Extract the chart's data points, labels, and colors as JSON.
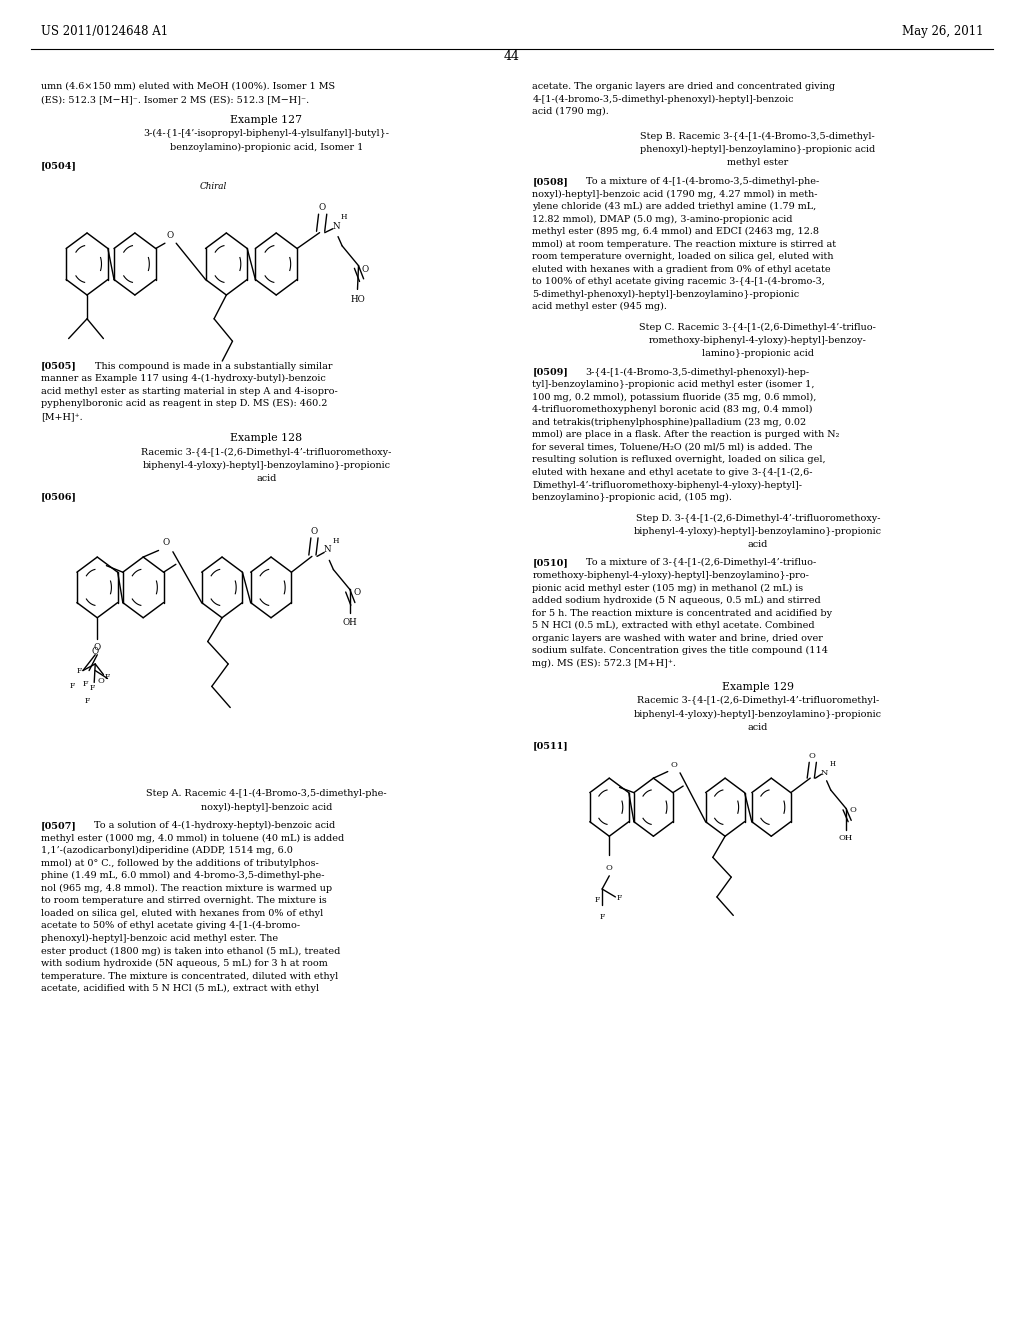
{
  "background": "#ffffff",
  "header_left": "US 2011/0124648 A1",
  "header_right": "May 26, 2011",
  "page_number": "44",
  "left_top_lines": [
    "umn (4.6×150 mm) eluted with MeOH (100%). Isomer 1 MS",
    "(ES): 512.3 [M−H]⁻. Isomer 2 MS (ES): 512.3 [M−H]⁻."
  ],
  "ex127_title": "Example 127",
  "ex127_sub1": "3-(4-{1-[4’-isopropyl-biphenyl-4-ylsulfanyl]-butyl}-",
  "ex127_sub2": "benzoylamino)-propionic acid, Isomer 1",
  "tag504": "[0504]",
  "chiral_label": "Chiral",
  "tag505": "[0505]",
  "p505": "This compound is made in a substantially similar manner as Example 117 using 4-(1-hydroxy-butyl)-benzoic acid methyl ester as starting material in step A and 4-isopropyphenylboronic acid as reagent in step D. MS (ES): 460.2 [M+H]⁺.",
  "ex128_title": "Example 128",
  "ex128_sub1": "Racemic 3-{4-[1-(2,6-Dimethyl-4’-trifluoromethoxy-",
  "ex128_sub2": "biphenyl-4-yloxy)-heptyl]-benzoylamino}-propionic",
  "ex128_sub3": "acid",
  "tag506": "[0506]",
  "stepA_title1": "Step A. Racemic 4-[1-(4-Bromo-3,5-dimethyl-phe-",
  "stepA_title2": "noxyl)-heptyl]-benzoic acid",
  "tag507": "[0507]",
  "p507": "To a solution of 4-(1-hydroxy-heptyl)-benzoic acid methyl ester (1000 mg, 4.0 mmol) in toluene (40 mL) is added 1,1’-(azodicarbonyl)diperidine (ADDP, 1514 mg, 6.0 mmol) at 0° C., followed by the additions of tributylphosphine (1.49 mL, 6.0 mmol) and 4-bromo-3,5-dimethyl-phenol (965 mg, 4.8 mmol). The reaction mixture is warmed up to room temperature and stirred overnight. The mixture is loaded on silica gel, eluted with hexanes from 0% of ethyl acetate to 50% of ethyl acetate giving 4-[1-(4-bromo-phenoxyl)-heptyl]-benzoic acid methyl ester. The ester product (1800 mg) is taken into ethanol (5 mL), treated with sodium hydroxide (5N aqueous, 5 mL) for 3 h at room temperature. The mixture is concentrated, diluted with ethyl acetate, acidified with 5 N HCl (5 mL), extract with ethyl",
  "right_top_lines": [
    "acetate. The organic layers are dried and concentrated giving",
    "4-[1-(4-bromo-3,5-dimethyl-phenoxyl)-heptyl]-benzoic",
    "acid (1790 mg)."
  ],
  "stepB_title1": "Step B. Racemic 3-{4-[1-(4-Bromo-3,5-dimethyl-",
  "stepB_title2": "phenoxyl)-heptyl]-benzoylamino}-propionic acid",
  "stepB_title3": "methyl ester",
  "tag508": "[0508]",
  "p508": "To a mixture of 4-[1-(4-bromo-3,5-dimethyl-phenoxyl)-heptyl]-benzoic acid (1790 mg, 4.27 mmol) in methylene chloride (43 mL) are added triethyl amine (1.79 mL, 12.82 mmol), DMAP (5.0 mg), 3-amino-propionic acid methyl ester (895 mg, 6.4 mmol) and EDCI (2463 mg, 12.8 mmol) at room temperature. The reaction mixture is stirred at room temperature overnight, loaded on silica gel, eluted with eluted with hexanes with a gradient from 0% of ethyl acetate to 100% of ethyl acetate giving racemic 3-{4-[1-(4-bromo-3,5-dimethyl-phenoxyl)-heptyl]-benzoylamino}-propionic acid methyl ester (945 mg).",
  "stepC_title1": "Step C. Racemic 3-{4-[1-(2,6-Dimethyl-4’-trifluo-",
  "stepC_title2": "romethoxy-biphenyl-4-yloxy)-heptyl]-benzoy-",
  "stepC_title3": "lamino}-propionic acid",
  "tag509": "[0509]",
  "p509": "3-{4-[1-(4-Bromo-3,5-dimethyl-phenoxyl)-heptyl]-benzoylamino}-propionic acid methyl ester (isomer 1, 100 mg, 0.2 mmol), potassium fluoride (35 mg, 0.6 mmol), 4-trifluoromethoxyphenyl boronic acid (83 mg, 0.4 mmol) and tetrakis(triphenylphosphine)palladium (23 mg, 0.02 mmol) are place in a flask. After the reaction is purged with N₂ for several times, Toluene/H₂O (20 ml/5 ml) is added. The resulting solution is refluxed overnight, loaded on silica gel, eluted with hexane and ethyl acetate to give 3-{4-[1-(2,6-Dimethyl-4’-trifluoromethoxy-biphenyl-4-yloxy)-heptyl]-benzoylamino}-propionic acid, (105 mg).",
  "stepD_title1": "Step D. 3-{4-[1-(2,6-Dimethyl-4’-trifluoromethoxy-",
  "stepD_title2": "biphenyl-4-yloxy)-heptyl]-benzoylamino}-propionic",
  "stepD_title3": "acid",
  "tag510": "[0510]",
  "p510": "To a mixture of 3-{4-[1-(2,6-Dimethyl-4’-trifluoromethoxy-biphenyl-4-yloxy)-heptyl]-benzoylamino}-propionic acid methyl ester (105 mg) in methanol (2 mL) is added sodium hydroxide (5 N aqueous, 0.5 mL) and stirred for 5 h. The reaction mixture is concentrated and acidified by 5 N HCl (0.5 mL), extracted with ethyl acetate. Combined organic layers are washed with water and brine, dried over sodium sulfate. Concentration gives the title compound (114 mg). MS (ES): 572.3 [M+H]⁺.",
  "ex129_title": "Example 129",
  "ex129_sub1": "Racemic 3-{4-[1-(2,6-Dimethyl-4’-trifluoromethyl-",
  "ex129_sub2": "biphenyl-4-yloxy)-heptyl]-benzoylamino}-propionic",
  "ex129_sub3": "acid",
  "tag511": "[0511]"
}
